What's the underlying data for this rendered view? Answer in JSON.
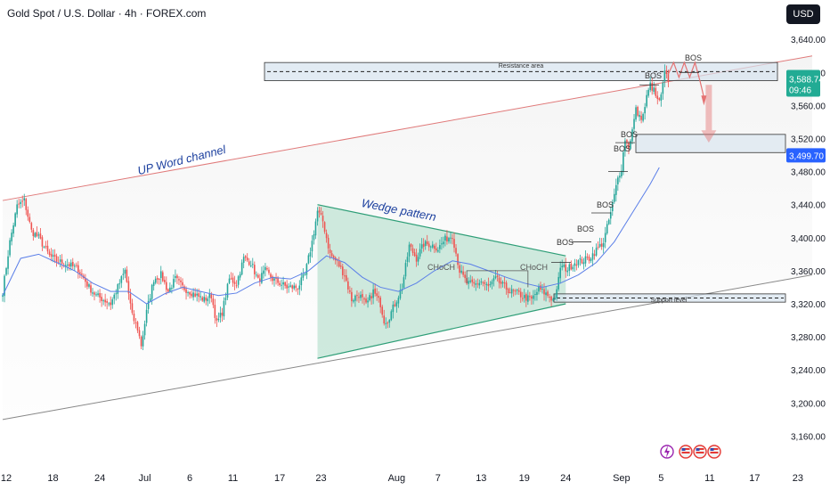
{
  "header": {
    "title": "Gold Spot / U.S. Dollar · 4h · FOREX.com",
    "currency_button": "USD"
  },
  "price_labels": {
    "current_price": "3,588.74",
    "countdown": "09:46",
    "marker_price": "3,499.70"
  },
  "colors": {
    "bull": "#26a69a",
    "bear": "#ef5350",
    "ma": "#5b7fe8",
    "wedge_fill": "#bfe3d3",
    "wedge_line": "#2e9e77",
    "zone_fill": "#d6e2ee",
    "channel_upper": "#e07a7a",
    "channel_lower": "#888888",
    "annotation_blue": "#1b3f9e",
    "price_green": "#22ab94",
    "price_blue": "#2962ff",
    "projection": "#e57373"
  },
  "chart_data": {
    "type": "candlestick",
    "title": "Gold Spot / U.S. Dollar · 4h · FOREX.com",
    "ylim": [
      3140,
      3660
    ],
    "y_ticks": [
      3160,
      3200,
      3240,
      3280,
      3320,
      3360,
      3400,
      3440,
      3480,
      3520,
      3560,
      3600,
      3640
    ],
    "y_tick_labels": [
      "3,160.00",
      "3,200.00",
      "3,240.00",
      "3,280.00",
      "3,320.00",
      "3,360.00",
      "3,400.00",
      "3,440.00",
      "3,480.00",
      "3,520.00",
      "3,560.00",
      "3,600.00",
      "3,640.00"
    ],
    "x_ticks": [
      {
        "label": "12",
        "idx": 2
      },
      {
        "label": "18",
        "idx": 28
      },
      {
        "label": "24",
        "idx": 54
      },
      {
        "label": "Jul",
        "idx": 79
      },
      {
        "label": "6",
        "idx": 104
      },
      {
        "label": "11",
        "idx": 128
      },
      {
        "label": "17",
        "idx": 154
      },
      {
        "label": "23",
        "idx": 177
      },
      {
        "label": "Aug",
        "idx": 219
      },
      {
        "label": "7",
        "idx": 242
      },
      {
        "label": "13",
        "idx": 266
      },
      {
        "label": "19",
        "idx": 290
      },
      {
        "label": "24",
        "idx": 313
      },
      {
        "label": "Sep",
        "idx": 344
      },
      {
        "label": "5",
        "idx": 366
      },
      {
        "label": "11",
        "idx": 393
      },
      {
        "label": "17",
        "idx": 418
      },
      {
        "label": "23",
        "idx": 442
      }
    ],
    "anchors": [
      [
        0,
        3335
      ],
      [
        4,
        3395
      ],
      [
        8,
        3438
      ],
      [
        12,
        3445
      ],
      [
        16,
        3408
      ],
      [
        20,
        3400
      ],
      [
        26,
        3378
      ],
      [
        30,
        3372
      ],
      [
        36,
        3368
      ],
      [
        42,
        3362
      ],
      [
        48,
        3340
      ],
      [
        52,
        3330
      ],
      [
        56,
        3325
      ],
      [
        60,
        3320
      ],
      [
        64,
        3340
      ],
      [
        68,
        3360
      ],
      [
        72,
        3305
      ],
      [
        75,
        3290
      ],
      [
        77,
        3270
      ],
      [
        80,
        3310
      ],
      [
        84,
        3350
      ],
      [
        88,
        3355
      ],
      [
        92,
        3335
      ],
      [
        96,
        3350
      ],
      [
        100,
        3340
      ],
      [
        104,
        3335
      ],
      [
        108,
        3330
      ],
      [
        112,
        3325
      ],
      [
        116,
        3330
      ],
      [
        119,
        3296
      ],
      [
        122,
        3310
      ],
      [
        126,
        3350
      ],
      [
        130,
        3345
      ],
      [
        134,
        3375
      ],
      [
        138,
        3370
      ],
      [
        142,
        3348
      ],
      [
        146,
        3360
      ],
      [
        150,
        3350
      ],
      [
        154,
        3345
      ],
      [
        158,
        3340
      ],
      [
        164,
        3340
      ],
      [
        168,
        3355
      ],
      [
        172,
        3395
      ],
      [
        175,
        3432
      ],
      [
        178,
        3420
      ],
      [
        182,
        3380
      ],
      [
        186,
        3370
      ],
      [
        190,
        3355
      ],
      [
        194,
        3325
      ],
      [
        198,
        3332
      ],
      [
        202,
        3318
      ],
      [
        206,
        3335
      ],
      [
        210,
        3320
      ],
      [
        212,
        3300
      ],
      [
        214,
        3300
      ],
      [
        218,
        3320
      ],
      [
        222,
        3340
      ],
      [
        226,
        3390
      ],
      [
        230,
        3375
      ],
      [
        234,
        3392
      ],
      [
        238,
        3392
      ],
      [
        242,
        3387
      ],
      [
        246,
        3398
      ],
      [
        250,
        3403
      ],
      [
        254,
        3360
      ],
      [
        258,
        3345
      ],
      [
        262,
        3343
      ],
      [
        266,
        3347
      ],
      [
        270,
        3340
      ],
      [
        274,
        3350
      ],
      [
        278,
        3342
      ],
      [
        282,
        3335
      ],
      [
        286,
        3333
      ],
      [
        290,
        3328
      ],
      [
        294,
        3325
      ],
      [
        298,
        3338
      ],
      [
        302,
        3332
      ],
      [
        306,
        3325
      ],
      [
        308,
        3334
      ],
      [
        310,
        3365
      ],
      [
        314,
        3362
      ],
      [
        318,
        3370
      ],
      [
        322,
        3372
      ],
      [
        326,
        3375
      ],
      [
        330,
        3385
      ],
      [
        334,
        3395
      ],
      [
        338,
        3430
      ],
      [
        342,
        3472
      ],
      [
        344,
        3485
      ],
      [
        346,
        3520
      ],
      [
        348,
        3510
      ],
      [
        350,
        3530
      ],
      [
        352,
        3555
      ],
      [
        354,
        3545
      ],
      [
        356,
        3548
      ],
      [
        358,
        3570
      ],
      [
        360,
        3585
      ],
      [
        362,
        3578
      ],
      [
        364,
        3565
      ],
      [
        366,
        3570
      ],
      [
        368,
        3600
      ],
      [
        370,
        3589
      ]
    ],
    "ma_anchors": [
      [
        0,
        3330
      ],
      [
        10,
        3375
      ],
      [
        20,
        3380
      ],
      [
        30,
        3370
      ],
      [
        40,
        3360
      ],
      [
        50,
        3345
      ],
      [
        60,
        3335
      ],
      [
        70,
        3335
      ],
      [
        80,
        3320
      ],
      [
        90,
        3332
      ],
      [
        100,
        3340
      ],
      [
        110,
        3335
      ],
      [
        120,
        3330
      ],
      [
        130,
        3333
      ],
      [
        140,
        3345
      ],
      [
        150,
        3352
      ],
      [
        160,
        3350
      ],
      [
        170,
        3360
      ],
      [
        180,
        3378
      ],
      [
        190,
        3370
      ],
      [
        200,
        3352
      ],
      [
        210,
        3340
      ],
      [
        220,
        3335
      ],
      [
        230,
        3345
      ],
      [
        240,
        3360
      ],
      [
        250,
        3372
      ],
      [
        260,
        3368
      ],
      [
        270,
        3360
      ],
      [
        280,
        3352
      ],
      [
        290,
        3345
      ],
      [
        300,
        3340
      ],
      [
        310,
        3345
      ],
      [
        320,
        3355
      ],
      [
        330,
        3370
      ],
      [
        340,
        3395
      ],
      [
        350,
        3430
      ],
      [
        360,
        3465
      ],
      [
        365,
        3485
      ]
    ],
    "levels": {
      "resistance": [
        3590,
        3612
      ],
      "support": [
        3322,
        3332
      ],
      "target_zone": [
        3503,
        3525
      ]
    },
    "patterns": {
      "wedge": [
        [
          [
            175,
            3440
          ],
          [
            313,
            3378
          ]
        ],
        [
          [
            175,
            3254
          ],
          [
            313,
            3320
          ]
        ]
      ],
      "channel_upper": [
        [
          0,
          3445
        ],
        [
          450,
          3620
        ]
      ],
      "channel_lower": [
        [
          0,
          3180
        ],
        [
          450,
          3355
        ]
      ]
    },
    "structure_labels": [
      "BOS",
      "BOS",
      "BOS",
      "BOS",
      "BOS",
      "BOS",
      "BOS",
      "CHoCH",
      "CHoCH"
    ],
    "annotations": [
      "Resistance area",
      "Support level",
      "UP Word channel",
      "Wedge pattern"
    ]
  }
}
